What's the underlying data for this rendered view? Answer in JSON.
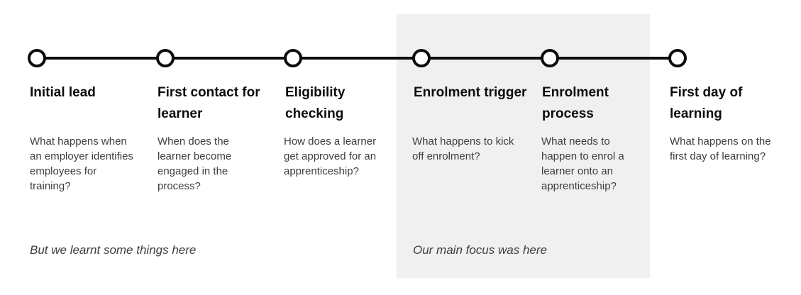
{
  "stages": [
    {
      "title": "Initial lead",
      "description": "What happens when an employer identifies employees for training?"
    },
    {
      "title": "First contact for learner",
      "description": "When does the learner become engaged in the process?"
    },
    {
      "title": "Eligibility checking",
      "description": "How does a learner get approved for an apprenticeship?"
    },
    {
      "title": "Enrolment trigger",
      "description": "What happens to kick off enrolment?"
    },
    {
      "title": "Enrolment process",
      "description": "What needs to happen to enrol a learner onto an apprenticeship?"
    },
    {
      "title": "First day of learning",
      "description": "What happens on the first day of learning?"
    }
  ],
  "notes": {
    "left": "But we learnt some things here",
    "focus": "Our main focus was here"
  },
  "colors": {
    "line": "#0b0c0c",
    "focus_background": "#f0f0f0",
    "text": "#0b0c0c",
    "secondary_text": "#3d3d3d"
  }
}
